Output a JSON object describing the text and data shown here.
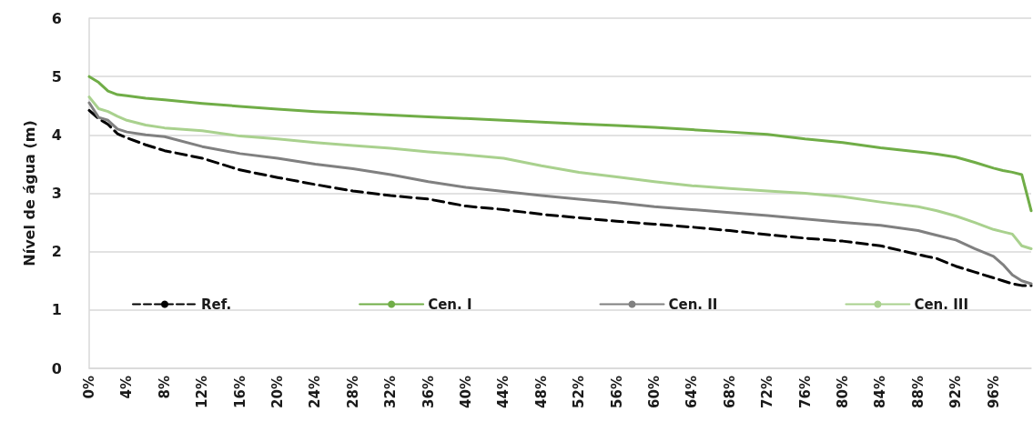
{
  "chart_data": {
    "type": "line",
    "ylabel": "Nível de água (m)",
    "ylim": [
      0,
      6
    ],
    "yticks": [
      0,
      1,
      2,
      3,
      4,
      5,
      6
    ],
    "xlim": [
      0,
      100
    ],
    "xticks": [
      {
        "value": 0,
        "label": "0%"
      },
      {
        "value": 4,
        "label": "4%"
      },
      {
        "value": 8,
        "label": "8%"
      },
      {
        "value": 12,
        "label": "12%"
      },
      {
        "value": 16,
        "label": "16%"
      },
      {
        "value": 20,
        "label": "20%"
      },
      {
        "value": 24,
        "label": "24%"
      },
      {
        "value": 28,
        "label": "28%"
      },
      {
        "value": 32,
        "label": "32%"
      },
      {
        "value": 36,
        "label": "36%"
      },
      {
        "value": 40,
        "label": "40%"
      },
      {
        "value": 44,
        "label": "44%"
      },
      {
        "value": 48,
        "label": "48%"
      },
      {
        "value": 52,
        "label": "52%"
      },
      {
        "value": 56,
        "label": "56%"
      },
      {
        "value": 60,
        "label": "60%"
      },
      {
        "value": 64,
        "label": "64%"
      },
      {
        "value": 68,
        "label": "68%"
      },
      {
        "value": 72,
        "label": "72%"
      },
      {
        "value": 76,
        "label": "76%"
      },
      {
        "value": 80,
        "label": "80%"
      },
      {
        "value": 84,
        "label": "84%"
      },
      {
        "value": 88,
        "label": "88%"
      },
      {
        "value": 92,
        "label": "92%"
      },
      {
        "value": 96,
        "label": "96%"
      }
    ],
    "x": [
      0,
      1,
      2,
      3,
      4,
      6,
      8,
      12,
      16,
      20,
      24,
      28,
      32,
      36,
      40,
      44,
      48,
      52,
      56,
      60,
      64,
      68,
      72,
      76,
      80,
      84,
      88,
      90,
      92,
      94,
      96,
      97,
      98,
      99,
      100
    ],
    "grid": "y",
    "legend": "bottom",
    "marker": "none",
    "series": [
      {
        "name": "Ref.",
        "color": "#000000",
        "line_style": "dashed",
        "values": [
          4.42,
          4.28,
          4.18,
          4.02,
          3.95,
          3.83,
          3.73,
          3.6,
          3.4,
          3.27,
          3.15,
          3.04,
          2.96,
          2.9,
          2.78,
          2.72,
          2.64,
          2.58,
          2.52,
          2.47,
          2.42,
          2.36,
          2.29,
          2.23,
          2.18,
          2.1,
          1.95,
          1.88,
          1.75,
          1.65,
          1.55,
          1.5,
          1.45,
          1.42,
          1.42
        ]
      },
      {
        "name": "Cen. I",
        "color": "#70ad47",
        "line_style": "solid",
        "values": [
          5.0,
          4.9,
          4.75,
          4.69,
          4.67,
          4.63,
          4.6,
          4.54,
          4.49,
          4.44,
          4.4,
          4.37,
          4.34,
          4.31,
          4.28,
          4.25,
          4.22,
          4.19,
          4.16,
          4.13,
          4.09,
          4.05,
          4.01,
          3.93,
          3.87,
          3.78,
          3.71,
          3.67,
          3.62,
          3.53,
          3.43,
          3.39,
          3.36,
          3.32,
          2.7
        ]
      },
      {
        "name": "Cen. II",
        "color": "#808080",
        "line_style": "solid",
        "values": [
          4.55,
          4.3,
          4.25,
          4.1,
          4.05,
          4.0,
          3.97,
          3.8,
          3.68,
          3.6,
          3.5,
          3.42,
          3.32,
          3.2,
          3.1,
          3.03,
          2.96,
          2.9,
          2.84,
          2.77,
          2.72,
          2.67,
          2.62,
          2.56,
          2.5,
          2.45,
          2.36,
          2.28,
          2.2,
          2.05,
          1.92,
          1.78,
          1.6,
          1.5,
          1.45
        ]
      },
      {
        "name": "Cen. III",
        "color": "#a9d18e",
        "line_style": "solid",
        "values": [
          4.65,
          4.45,
          4.4,
          4.32,
          4.25,
          4.17,
          4.12,
          4.07,
          3.98,
          3.93,
          3.87,
          3.82,
          3.77,
          3.71,
          3.66,
          3.6,
          3.47,
          3.36,
          3.28,
          3.2,
          3.13,
          3.08,
          3.04,
          3.0,
          2.94,
          2.85,
          2.77,
          2.7,
          2.61,
          2.5,
          2.38,
          2.34,
          2.3,
          2.1,
          2.05
        ]
      }
    ]
  }
}
